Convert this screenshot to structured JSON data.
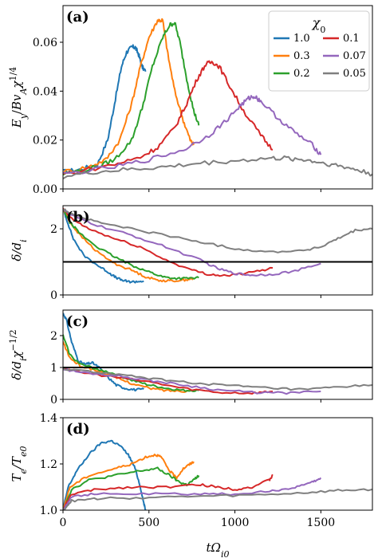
{
  "chart_data": [
    {
      "panel": "(a)",
      "type": "line",
      "ylabel": "E_y / B v_A χ^{1/4}",
      "xlim": [
        0,
        1800
      ],
      "ylim": [
        0,
        0.075
      ],
      "yticks": [
        0.0,
        0.02,
        0.04,
        0.06
      ],
      "ytick_labels": [
        "0.00",
        "0.02",
        "0.04",
        "0.06"
      ],
      "xticks": [
        0,
        500,
        1000,
        1500
      ],
      "legend": {
        "title": "χ0",
        "placement": "top-right",
        "entries": [
          "1.0",
          "0.1",
          "0.3",
          "0.07",
          "0.2",
          "0.05"
        ]
      },
      "series": [
        {
          "name": "1.0",
          "color": "#1f77b4",
          "x": [
            0,
            100,
            200,
            260,
            300,
            340,
            370,
            400,
            420,
            440,
            460,
            480
          ],
          "y": [
            0.007,
            0.008,
            0.01,
            0.02,
            0.035,
            0.05,
            0.056,
            0.058,
            0.058,
            0.055,
            0.05,
            0.048
          ]
        },
        {
          "name": "0.3",
          "color": "#ff7f0e",
          "x": [
            0,
            150,
            250,
            330,
            400,
            450,
            500,
            550,
            580,
            610,
            650,
            700,
            740,
            760
          ],
          "y": [
            0.007,
            0.009,
            0.012,
            0.02,
            0.035,
            0.05,
            0.062,
            0.069,
            0.069,
            0.055,
            0.04,
            0.028,
            0.02,
            0.018
          ]
        },
        {
          "name": "0.2",
          "color": "#2ca02c",
          "x": [
            0,
            200,
            300,
            400,
            460,
            520,
            580,
            620,
            650,
            680,
            720,
            760,
            790
          ],
          "y": [
            0.006,
            0.009,
            0.012,
            0.02,
            0.033,
            0.05,
            0.062,
            0.067,
            0.068,
            0.06,
            0.045,
            0.032,
            0.026
          ]
        },
        {
          "name": "0.1",
          "color": "#d62728",
          "x": [
            0,
            300,
            450,
            550,
            650,
            720,
            780,
            830,
            870,
            910,
            970,
            1050,
            1150,
            1220
          ],
          "y": [
            0.006,
            0.01,
            0.013,
            0.017,
            0.025,
            0.035,
            0.045,
            0.051,
            0.052,
            0.05,
            0.042,
            0.032,
            0.022,
            0.016
          ]
        },
        {
          "name": "0.07",
          "color": "#9467bd",
          "x": [
            0,
            300,
            500,
            700,
            850,
            950,
            1030,
            1080,
            1110,
            1150,
            1250,
            1350,
            1450,
            1500
          ],
          "y": [
            0.006,
            0.009,
            0.012,
            0.016,
            0.022,
            0.028,
            0.034,
            0.037,
            0.038,
            0.036,
            0.029,
            0.023,
            0.018,
            0.014
          ]
        },
        {
          "name": "0.05",
          "color": "#7f7f7f",
          "x": [
            0,
            200,
            400,
            600,
            800,
            1000,
            1200,
            1300,
            1400,
            1500,
            1600,
            1700,
            1800
          ],
          "y": [
            0.005,
            0.007,
            0.008,
            0.009,
            0.0105,
            0.0115,
            0.0125,
            0.0125,
            0.012,
            0.0108,
            0.0095,
            0.008,
            0.006
          ]
        }
      ]
    },
    {
      "panel": "(b)",
      "type": "line",
      "ylabel": "δ / d_i",
      "xlim": [
        0,
        1800
      ],
      "ylim": [
        0,
        2.7
      ],
      "yticks": [
        0,
        2
      ],
      "ytick_labels": [
        "0",
        "2"
      ],
      "xticks": [
        0,
        500,
        1000,
        1500
      ],
      "hline": 1.0,
      "series": [
        {
          "name": "1.0",
          "color": "#1f77b4",
          "x": [
            0,
            20,
            60,
            120,
            200,
            260,
            300,
            340,
            380,
            420,
            470
          ],
          "y": [
            2.6,
            2.3,
            1.7,
            1.2,
            0.9,
            0.7,
            0.55,
            0.45,
            0.4,
            0.4,
            0.42
          ]
        },
        {
          "name": "0.3",
          "color": "#ff7f0e",
          "x": [
            0,
            40,
            100,
            200,
            300,
            400,
            480,
            550,
            620,
            700,
            760
          ],
          "y": [
            2.6,
            2.2,
            1.8,
            1.3,
            0.95,
            0.75,
            0.55,
            0.45,
            0.42,
            0.45,
            0.5
          ]
        },
        {
          "name": "0.2",
          "color": "#2ca02c",
          "x": [
            0,
            40,
            100,
            200,
            300,
            400,
            500,
            580,
            650,
            720,
            790
          ],
          "y": [
            2.6,
            2.2,
            1.85,
            1.45,
            1.15,
            0.9,
            0.7,
            0.55,
            0.5,
            0.5,
            0.52
          ]
        },
        {
          "name": "0.1",
          "color": "#d62728",
          "x": [
            0,
            50,
            150,
            300,
            450,
            600,
            750,
            850,
            950,
            1100,
            1220
          ],
          "y": [
            2.6,
            2.3,
            2.0,
            1.7,
            1.45,
            1.05,
            0.75,
            0.62,
            0.58,
            0.68,
            0.82
          ]
        },
        {
          "name": "0.07",
          "color": "#9467bd",
          "x": [
            0,
            50,
            200,
            400,
            600,
            800,
            900,
            1000,
            1100,
            1200,
            1350,
            1500
          ],
          "y": [
            2.6,
            2.4,
            2.1,
            1.8,
            1.45,
            1.05,
            0.8,
            0.65,
            0.6,
            0.62,
            0.72,
            0.95
          ]
        },
        {
          "name": "0.05",
          "color": "#7f7f7f",
          "x": [
            0,
            50,
            200,
            400,
            600,
            800,
            1000,
            1200,
            1400,
            1500,
            1600,
            1700,
            1800
          ],
          "y": [
            2.6,
            2.45,
            2.2,
            2.0,
            1.8,
            1.6,
            1.4,
            1.3,
            1.35,
            1.45,
            1.7,
            1.95,
            2.0
          ]
        }
      ]
    },
    {
      "panel": "(c)",
      "type": "line",
      "ylabel": "δ / d_i χ^{-1/2}",
      "xlim": [
        0,
        1800
      ],
      "ylim": [
        0,
        2.8
      ],
      "yticks": [
        0,
        1,
        2
      ],
      "ytick_labels": [
        "0",
        "1",
        "2"
      ],
      "xticks": [
        0,
        500,
        1000,
        1500
      ],
      "hline": 1.0,
      "series": [
        {
          "name": "1.0",
          "color": "#1f77b4",
          "x": [
            0,
            20,
            50,
            90,
            130,
            170,
            210,
            260,
            310,
            360,
            420,
            470
          ],
          "y": [
            2.7,
            2.5,
            1.8,
            1.2,
            1.1,
            1.15,
            1.0,
            0.7,
            0.45,
            0.35,
            0.3,
            0.32
          ]
        },
        {
          "name": "0.3",
          "color": "#ff7f0e",
          "x": [
            0,
            40,
            100,
            200,
            300,
            400,
            500,
            600,
            700,
            760
          ],
          "y": [
            1.8,
            1.3,
            1.05,
            0.9,
            0.7,
            0.5,
            0.35,
            0.28,
            0.26,
            0.28
          ]
        },
        {
          "name": "0.2",
          "color": "#2ca02c",
          "x": [
            0,
            40,
            100,
            200,
            300,
            400,
            500,
            600,
            700,
            790
          ],
          "y": [
            2.0,
            1.4,
            1.1,
            0.95,
            0.8,
            0.6,
            0.45,
            0.35,
            0.28,
            0.28
          ]
        },
        {
          "name": "0.1",
          "color": "#d62728",
          "x": [
            0,
            100,
            300,
            500,
            700,
            900,
            1100,
            1220
          ],
          "y": [
            1.0,
            0.85,
            0.7,
            0.55,
            0.35,
            0.22,
            0.2,
            0.25
          ]
        },
        {
          "name": "0.07",
          "color": "#9467bd",
          "x": [
            0,
            100,
            300,
            500,
            700,
            900,
            1100,
            1300,
            1500
          ],
          "y": [
            0.95,
            0.85,
            0.75,
            0.6,
            0.45,
            0.3,
            0.22,
            0.2,
            0.25
          ]
        },
        {
          "name": "0.05",
          "color": "#7f7f7f",
          "x": [
            0,
            200,
            400,
            600,
            800,
            1000,
            1200,
            1400,
            1600,
            1800
          ],
          "y": [
            0.95,
            0.85,
            0.72,
            0.6,
            0.5,
            0.42,
            0.35,
            0.3,
            0.38,
            0.45
          ]
        }
      ]
    },
    {
      "panel": "(d)",
      "type": "line",
      "ylabel": "T_e / T_e0",
      "xlabel": "tΩ_i0",
      "xlim": [
        0,
        1800
      ],
      "ylim": [
        1.0,
        1.4
      ],
      "yticks": [
        1.0,
        1.2,
        1.4
      ],
      "ytick_labels": [
        "1.0",
        "1.2",
        "1.4"
      ],
      "xticks": [
        0,
        500,
        1000,
        1500
      ],
      "xtick_labels": [
        "0",
        "500",
        "1000",
        "1500"
      ],
      "series": [
        {
          "name": "1.0",
          "color": "#1f77b4",
          "x": [
            0,
            30,
            80,
            150,
            220,
            280,
            330,
            380,
            420,
            450,
            470,
            480
          ],
          "y": [
            1.0,
            1.1,
            1.17,
            1.24,
            1.29,
            1.3,
            1.28,
            1.24,
            1.18,
            1.1,
            1.03,
            1.0
          ]
        },
        {
          "name": "0.3",
          "color": "#ff7f0e",
          "x": [
            0,
            40,
            150,
            300,
            400,
            480,
            540,
            570,
            620,
            660,
            700,
            740,
            760
          ],
          "y": [
            1.0,
            1.1,
            1.15,
            1.18,
            1.2,
            1.23,
            1.24,
            1.23,
            1.17,
            1.14,
            1.18,
            1.2,
            1.21
          ]
        },
        {
          "name": "0.2",
          "color": "#2ca02c",
          "x": [
            0,
            50,
            150,
            300,
            450,
            550,
            620,
            680,
            720,
            760,
            790
          ],
          "y": [
            1.0,
            1.09,
            1.13,
            1.15,
            1.17,
            1.18,
            1.15,
            1.12,
            1.11,
            1.13,
            1.15
          ]
        },
        {
          "name": "0.1",
          "color": "#d62728",
          "x": [
            0,
            50,
            200,
            400,
            600,
            800,
            900,
            1000,
            1100,
            1200,
            1220
          ],
          "y": [
            1.0,
            1.07,
            1.09,
            1.1,
            1.1,
            1.11,
            1.1,
            1.09,
            1.1,
            1.13,
            1.15
          ]
        },
        {
          "name": "0.07",
          "color": "#9467bd",
          "x": [
            0,
            50,
            200,
            500,
            800,
            1000,
            1200,
            1350,
            1450,
            1500
          ],
          "y": [
            1.0,
            1.06,
            1.07,
            1.07,
            1.07,
            1.07,
            1.08,
            1.1,
            1.12,
            1.14
          ]
        },
        {
          "name": "0.05",
          "color": "#7f7f7f",
          "x": [
            0,
            50,
            200,
            500,
            800,
            1100,
            1400,
            1600,
            1800
          ],
          "y": [
            1.0,
            1.04,
            1.05,
            1.055,
            1.06,
            1.065,
            1.075,
            1.085,
            1.09
          ]
        }
      ]
    }
  ]
}
